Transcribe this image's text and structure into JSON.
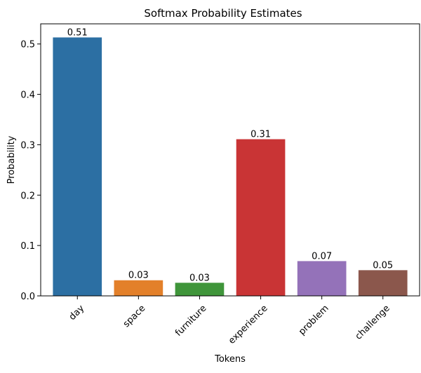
{
  "chart_data": {
    "type": "bar",
    "title": "Softmax Probability Estimates",
    "xlabel": "Tokens",
    "ylabel": "Probability",
    "categories": [
      "day",
      "space",
      "furniture",
      "experience",
      "problem",
      "challenge"
    ],
    "values": [
      0.513,
      0.031,
      0.026,
      0.311,
      0.069,
      0.051
    ],
    "data_labels": [
      "0.51",
      "0.03",
      "0.03",
      "0.31",
      "0.07",
      "0.05"
    ],
    "colors": [
      "#2c6fa3",
      "#e3802a",
      "#3f953a",
      "#c93435",
      "#9472b9",
      "#8b574c"
    ],
    "ylim": [
      0,
      0.54
    ],
    "yticks": [
      0.0,
      0.1,
      0.2,
      0.3,
      0.4,
      0.5
    ],
    "ytick_labels": [
      "0.0",
      "0.1",
      "0.2",
      "0.3",
      "0.4",
      "0.5"
    ],
    "grid": false,
    "legend": "none"
  }
}
